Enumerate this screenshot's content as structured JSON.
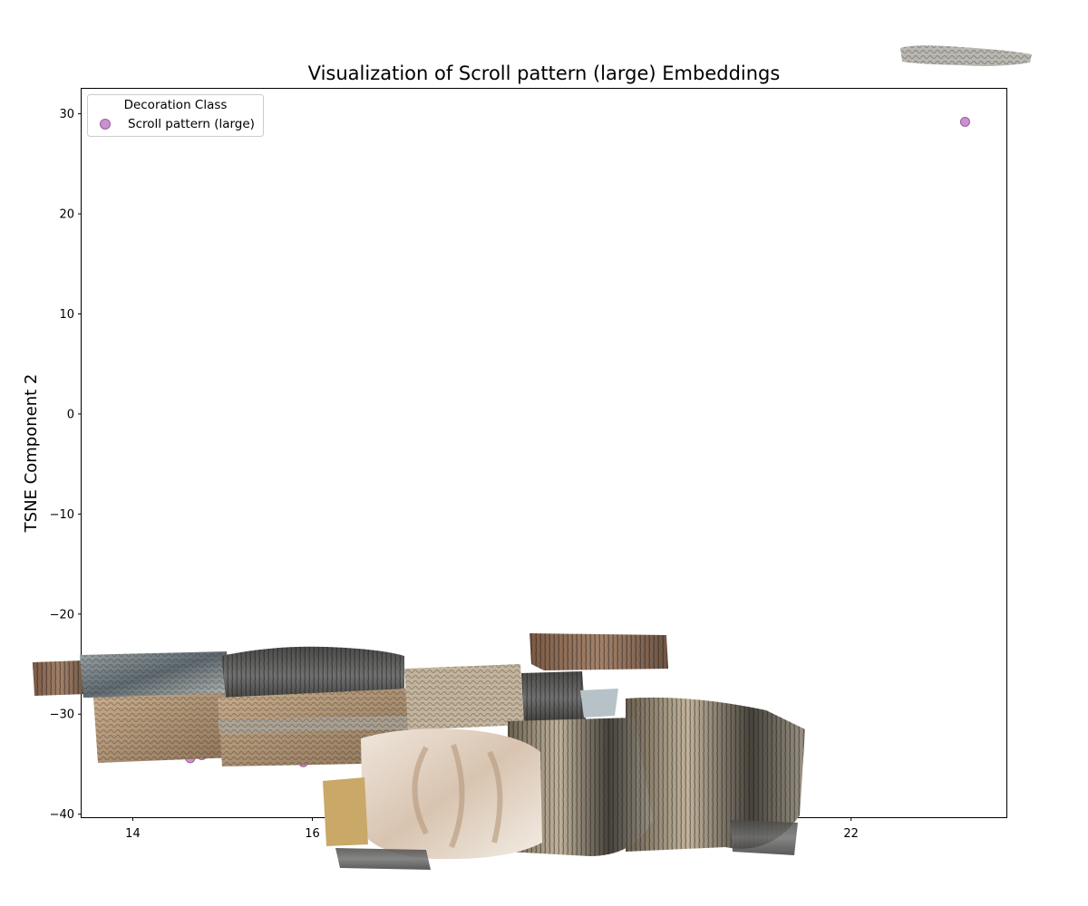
{
  "chart_data": {
    "type": "scatter",
    "title": "Visualization of Scroll pattern (large) Embeddings",
    "xlabel": "",
    "ylabel": "TSNE Component 2",
    "xlim": [
      13.43,
      23.73
    ],
    "ylim": [
      -40.3,
      32.5
    ],
    "xticks": [
      14,
      16,
      22
    ],
    "yticks": [
      30,
      20,
      10,
      0,
      -10,
      -20,
      -30,
      -40
    ],
    "xtick_labels": [
      "14",
      "16",
      "22"
    ],
    "ytick_labels": [
      "30",
      "20",
      "10",
      "0",
      "−10",
      "−20",
      "−30",
      "−40"
    ],
    "grid": false,
    "legend": {
      "title": "Decoration Class",
      "placement": "top-left"
    },
    "series": [
      {
        "name": "Scroll pattern (large)",
        "color": "#c07fc6",
        "points": [
          {
            "x": 23.27,
            "y": 29.2
          },
          {
            "x": 14.64,
            "y": -34.4
          },
          {
            "x": 14.77,
            "y": -34.1
          },
          {
            "x": 15.9,
            "y": -34.8
          }
        ]
      }
    ],
    "overlay_images": [
      {
        "kind": "carved-stone-thumbnail",
        "tone": "gray-white"
      },
      {
        "kind": "carved-stone-thumbnail",
        "tone": "brown"
      },
      {
        "kind": "carved-stone-thumbnail",
        "tone": "gray-blue"
      },
      {
        "kind": "carved-stone-thumbnail",
        "tone": "dark-gray"
      },
      {
        "kind": "carved-stone-thumbnail",
        "tone": "tan"
      },
      {
        "kind": "carved-stone-thumbnail",
        "tone": "beige"
      },
      {
        "kind": "carved-stone-thumbnail",
        "tone": "cream-scroll"
      },
      {
        "kind": "carved-stone-thumbnail",
        "tone": "charcoal"
      }
    ]
  }
}
